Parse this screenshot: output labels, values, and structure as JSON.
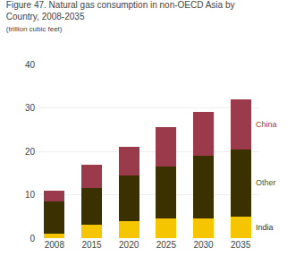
{
  "chart_data": {
    "type": "bar",
    "stacked": true,
    "title": "Figure 47. Natural gas consumption in non-OECD Asia by\nCountry, 2008-2035",
    "subtitle": "(trillion cubic feet)",
    "categories": [
      "2008",
      "2015",
      "2020",
      "2025",
      "2030",
      "2035"
    ],
    "series": [
      {
        "name": "India",
        "color": "#F5C500",
        "values": [
          1.0,
          3.0,
          4.0,
          4.5,
          4.5,
          5.0
        ]
      },
      {
        "name": "Other",
        "color": "#3B3000",
        "values": [
          7.5,
          8.5,
          10.5,
          12.0,
          14.5,
          15.5
        ]
      },
      {
        "name": "China",
        "color": "#9B3A4A",
        "values": [
          2.5,
          5.5,
          6.5,
          9.0,
          10.0,
          11.5
        ]
      }
    ],
    "annotations": [
      {
        "text": "China",
        "color": "#9B3A4A"
      },
      {
        "text": "Other",
        "color": "#555500"
      },
      {
        "text": "India",
        "color": "#333333"
      }
    ],
    "ylim": [
      0,
      40
    ],
    "yticks": [
      0,
      10,
      20,
      30,
      40
    ],
    "grid": true
  }
}
